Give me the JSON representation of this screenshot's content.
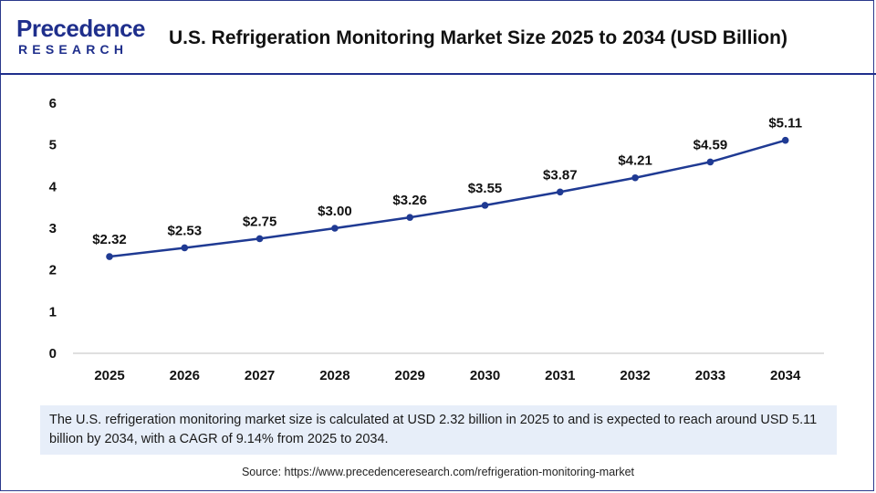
{
  "header": {
    "logo_main": "Precedence",
    "logo_sub": "RESEARCH",
    "title": "U.S. Refrigeration Monitoring Market Size 2025 to 2034 (USD Billion)"
  },
  "chart_data": {
    "type": "line",
    "title": "U.S. Refrigeration Monitoring Market Size 2025 to 2034 (USD Billion)",
    "xlabel": "",
    "ylabel": "",
    "categories": [
      "2025",
      "2026",
      "2027",
      "2028",
      "2029",
      "2030",
      "2031",
      "2032",
      "2033",
      "2034"
    ],
    "series": [
      {
        "name": "Market Size (USD Billion)",
        "values": [
          2.32,
          2.53,
          2.75,
          3.0,
          3.26,
          3.55,
          3.87,
          4.21,
          4.59,
          5.11
        ]
      }
    ],
    "data_labels": [
      "$2.32",
      "$2.53",
      "$2.75",
      "$3.00",
      "$3.26",
      "$3.55",
      "$3.87",
      "$4.21",
      "$4.59",
      "$5.11"
    ],
    "ylim": [
      0,
      6
    ],
    "yticks": [
      "0",
      "1",
      "2",
      "3",
      "4",
      "5",
      "6"
    ],
    "grid": false,
    "line_color": "#1f3a93"
  },
  "note": {
    "text": "The U.S. refrigeration monitoring market size is calculated at USD 2.32 billion in 2025 to and is expected to reach around USD 5.11 billion by 2034, with a CAGR of 9.14% from 2025 to 2034."
  },
  "source": {
    "text": "Source: https://www.precedenceresearch.com/refrigeration-monitoring-market"
  }
}
